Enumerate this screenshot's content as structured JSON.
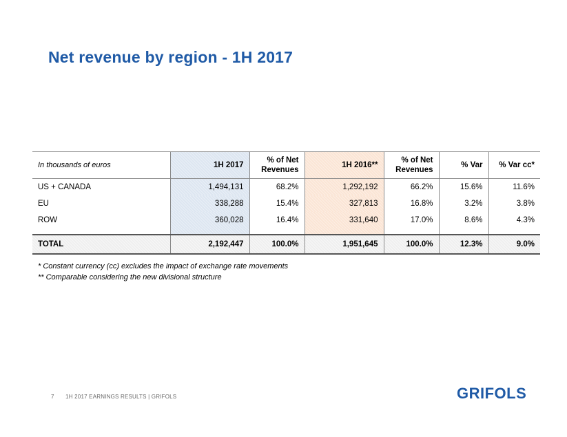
{
  "title": "Net revenue by region - 1H 2017",
  "table": {
    "unit_label": "In thousands of euros",
    "headers": [
      "1H 2017",
      "% of Net Revenues",
      "1H 2016**",
      "% of Net Revenues",
      "% Var",
      "% Var cc*"
    ],
    "rows": [
      {
        "label": "US + CANADA",
        "cells": [
          "1,494,131",
          "68.2%",
          "1,292,192",
          "66.2%",
          "15.6%",
          "11.6%"
        ]
      },
      {
        "label": "EU",
        "cells": [
          "338,288",
          "15.4%",
          "327,813",
          "16.8%",
          "3.2%",
          "3.8%"
        ]
      },
      {
        "label": "ROW",
        "cells": [
          "360,028",
          "16.4%",
          "331,640",
          "17.0%",
          "8.6%",
          "4.3%"
        ]
      }
    ],
    "total": {
      "label": "TOTAL",
      "cells": [
        "2,192,447",
        "100.0%",
        "1,951,645",
        "100.0%",
        "12.3%",
        "9.0%"
      ]
    }
  },
  "footnotes": [
    "* Constant currency (cc) excludes the impact of exchange rate movements",
    "** Comparable considering the new divisional structure"
  ],
  "footer": {
    "page": "7",
    "text": "1H 2017 EARNINGS RESULTS | GRIFOLS"
  },
  "logo": "GRIFOLS",
  "colors": {
    "title": "#1f5aa6",
    "col_2017": "#dde6f1",
    "col_2016": "#fbe5d5"
  }
}
